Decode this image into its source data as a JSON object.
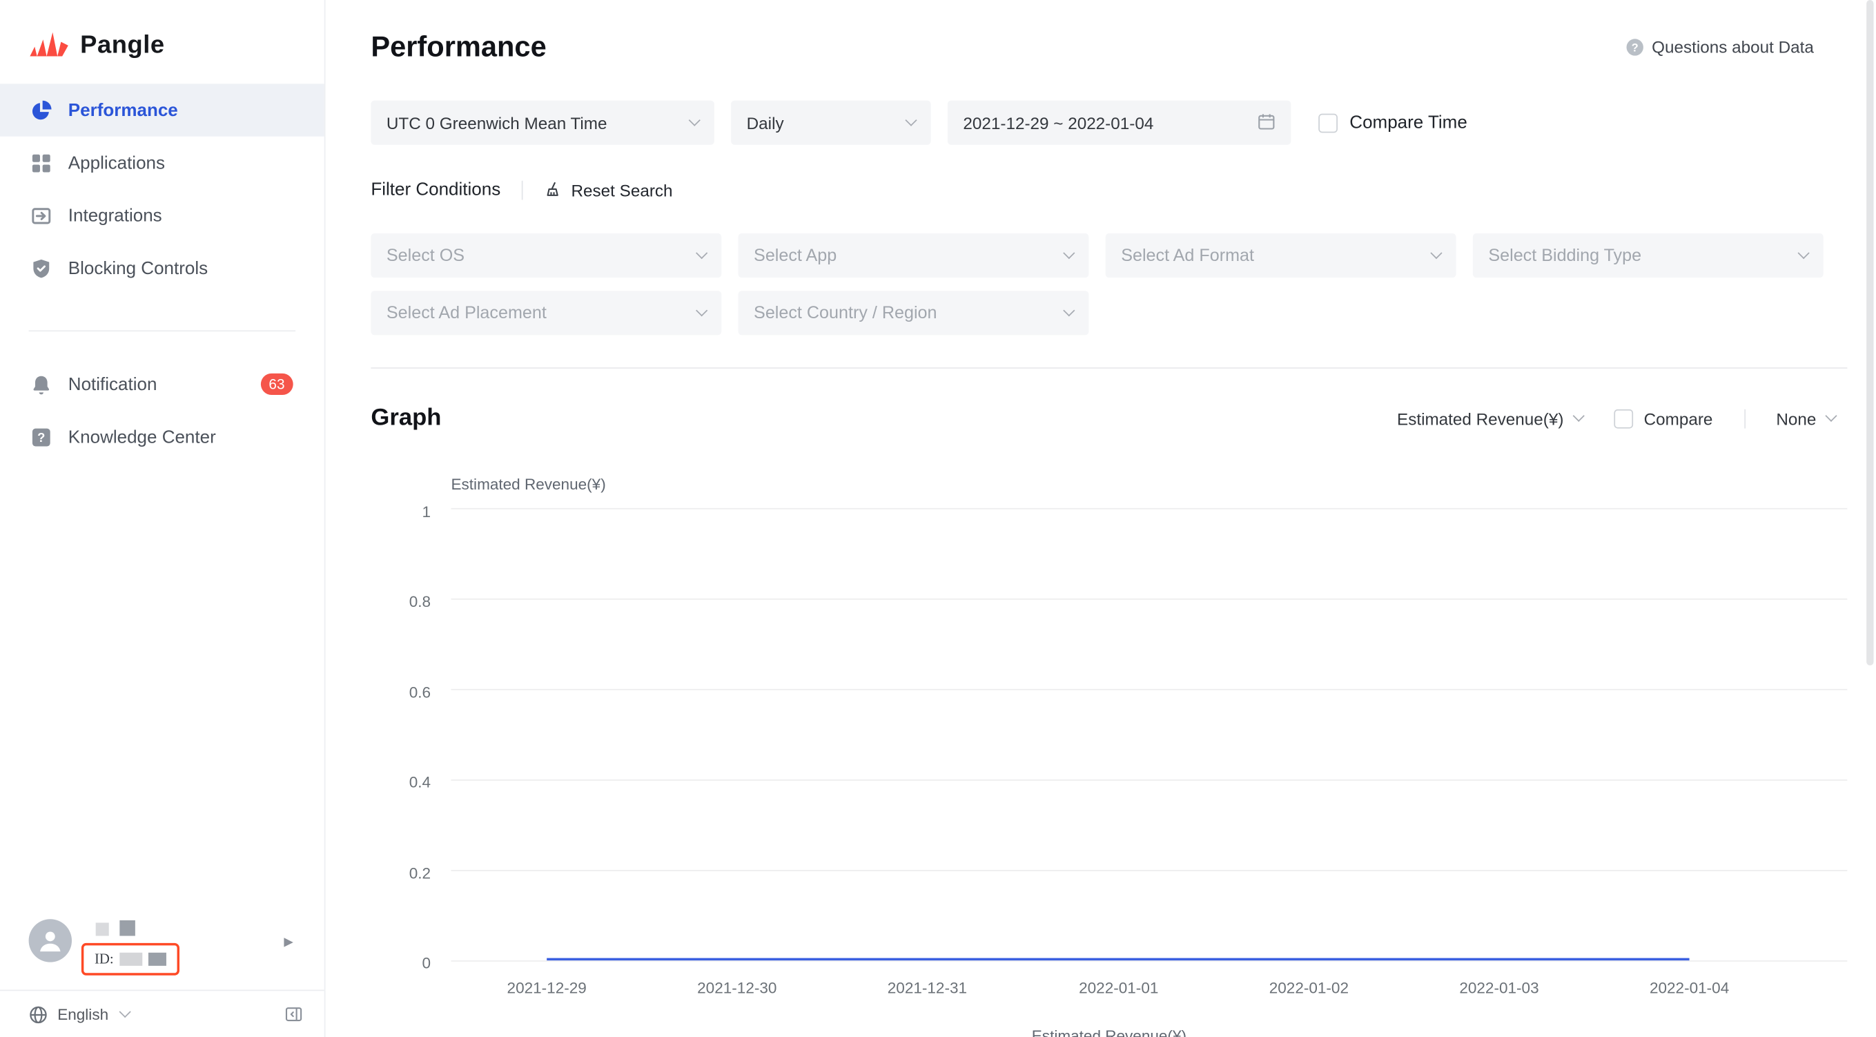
{
  "brand": {
    "name": "Pangle"
  },
  "colors": {
    "accent": "#2B55D8",
    "badge": "#F5554A",
    "redact_outline": "#FE4A26",
    "chart_line": "#3A5FE0",
    "logo": "#FB4C41"
  },
  "sidebar": {
    "items": [
      {
        "label": "Performance",
        "icon": "pie-chart-icon",
        "active": true
      },
      {
        "label": "Applications",
        "icon": "applications-icon",
        "active": false
      },
      {
        "label": "Integrations",
        "icon": "integrations-icon",
        "active": false
      },
      {
        "label": "Blocking Controls",
        "icon": "shield-icon",
        "active": false
      }
    ],
    "secondary_items": [
      {
        "label": "Notification",
        "icon": "bell-icon",
        "badge": "63"
      },
      {
        "label": "Knowledge Center",
        "icon": "question-square-icon",
        "badge": ""
      }
    ],
    "user": {
      "id_prefix": "ID:"
    },
    "language": "English"
  },
  "header": {
    "title": "Performance",
    "help_link": "Questions about Data"
  },
  "filters": {
    "timezone": "UTC 0 Greenwich Mean Time",
    "granularity": "Daily",
    "date_range": "2021-12-29 ~ 2022-01-04",
    "compare_time_label": "Compare Time",
    "section_label": "Filter Conditions",
    "reset_label": "Reset Search",
    "selects": [
      "Select OS",
      "Select App",
      "Select Ad Format",
      "Select Bidding Type",
      "Select Ad Placement",
      "Select Country / Region"
    ]
  },
  "graph": {
    "title": "Graph",
    "metric": "Estimated Revenue(¥)",
    "compare_label": "Compare",
    "secondary_metric": "None"
  },
  "chart_data": {
    "type": "line",
    "title": "",
    "xlabel": "",
    "ylabel": "Estimated Revenue(¥)",
    "x": [
      "2021-12-29",
      "2021-12-30",
      "2021-12-31",
      "2022-01-01",
      "2022-01-02",
      "2022-01-03",
      "2022-01-04"
    ],
    "series": [
      {
        "name": "Estimated Revenue(¥)",
        "values": [
          0,
          0,
          0,
          0,
          0,
          0,
          0
        ]
      }
    ],
    "ylim": [
      0,
      1
    ],
    "yticks": [
      0,
      0.2,
      0.4,
      0.6,
      0.8,
      1
    ],
    "grid": true,
    "legend_position": "bottom"
  }
}
